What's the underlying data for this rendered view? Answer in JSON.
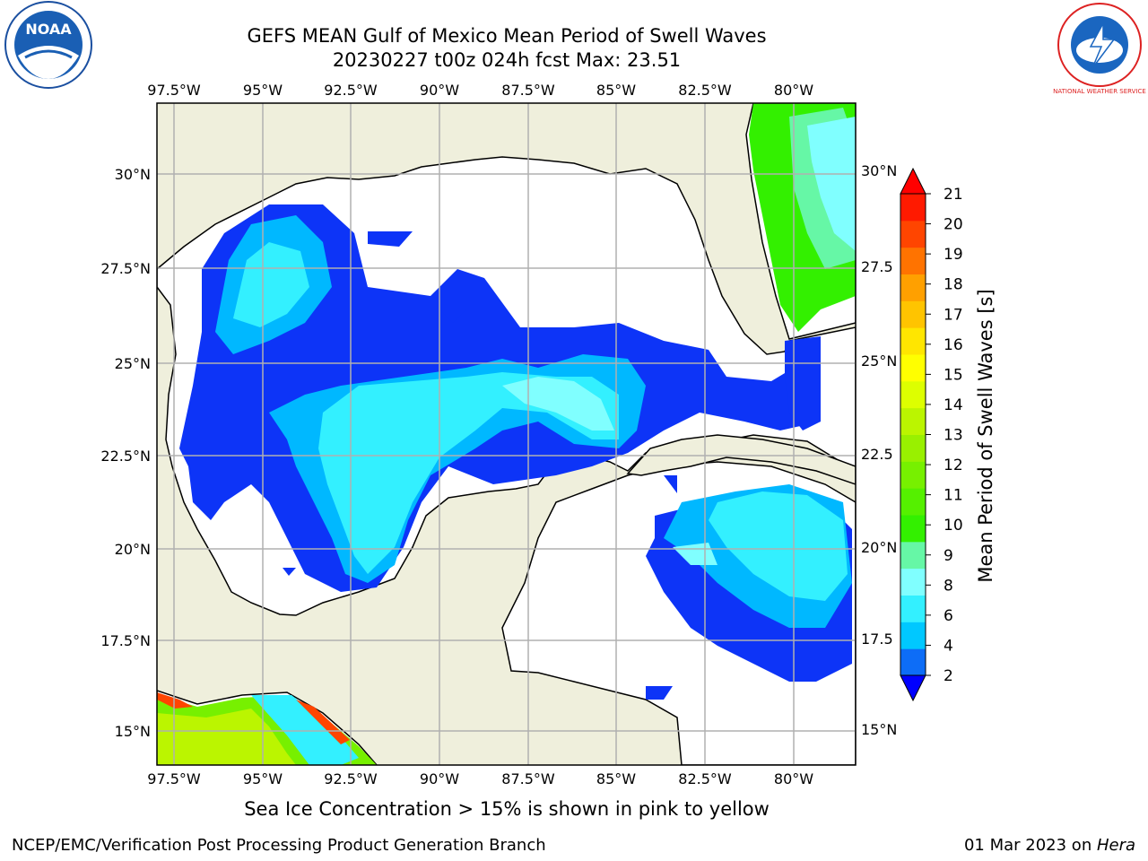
{
  "header": {
    "title_line1": "GEFS MEAN Gulf of Mexico Mean Period of Swell Waves",
    "title_line2": "20230227 t00z 024h fcst   Max: 23.51"
  },
  "logos": {
    "left": "NOAA",
    "right": "NATIONAL WEATHER SERVICE"
  },
  "map": {
    "lon_labels": [
      "97.5°W",
      "95°W",
      "92.5°W",
      "90°W",
      "87.5°W",
      "85°W",
      "82.5°W",
      "80°W"
    ],
    "lat_labels_left": [
      "30°N",
      "27.5°N",
      "25°N",
      "22.5°N",
      "20°N",
      "17.5°N",
      "15°N"
    ],
    "lat_labels_right": [
      "30°N",
      "27.5",
      "25°N",
      "22.5",
      "20°N",
      "17.5",
      "15°N"
    ],
    "colors": {
      "land": "#efefdc",
      "ocean": "#ffffff",
      "grid": "#b0b0b0",
      "coast": "#000000"
    }
  },
  "colorbar": {
    "label": "Mean Period of Swell Waves [s]",
    "ticks": [
      "2",
      "4",
      "6",
      "8",
      "9",
      "10",
      "11",
      "12",
      "13",
      "14",
      "15",
      "16",
      "17",
      "18",
      "19",
      "20",
      "21"
    ],
    "colors": [
      "#0d6df7",
      "#00c8ff",
      "#33f0ff",
      "#80ffff",
      "#66f7a6",
      "#33f000",
      "#55f000",
      "#77f000",
      "#99f000",
      "#bbf500",
      "#ddff00",
      "#ffff00",
      "#ffe600",
      "#ffc400",
      "#ffa000",
      "#ff7300",
      "#ff4500",
      "#ff1a00"
    ],
    "under_color": "#0000ff",
    "over_color": "#ff0000"
  },
  "footer": {
    "ice_note": "Sea Ice Concentration > 15% is shown in pink to yellow",
    "credit": "NCEP/EMC/Verification Post Processing Product Generation Branch",
    "date": "01 Mar 2023 on ",
    "machine": "Hera"
  }
}
